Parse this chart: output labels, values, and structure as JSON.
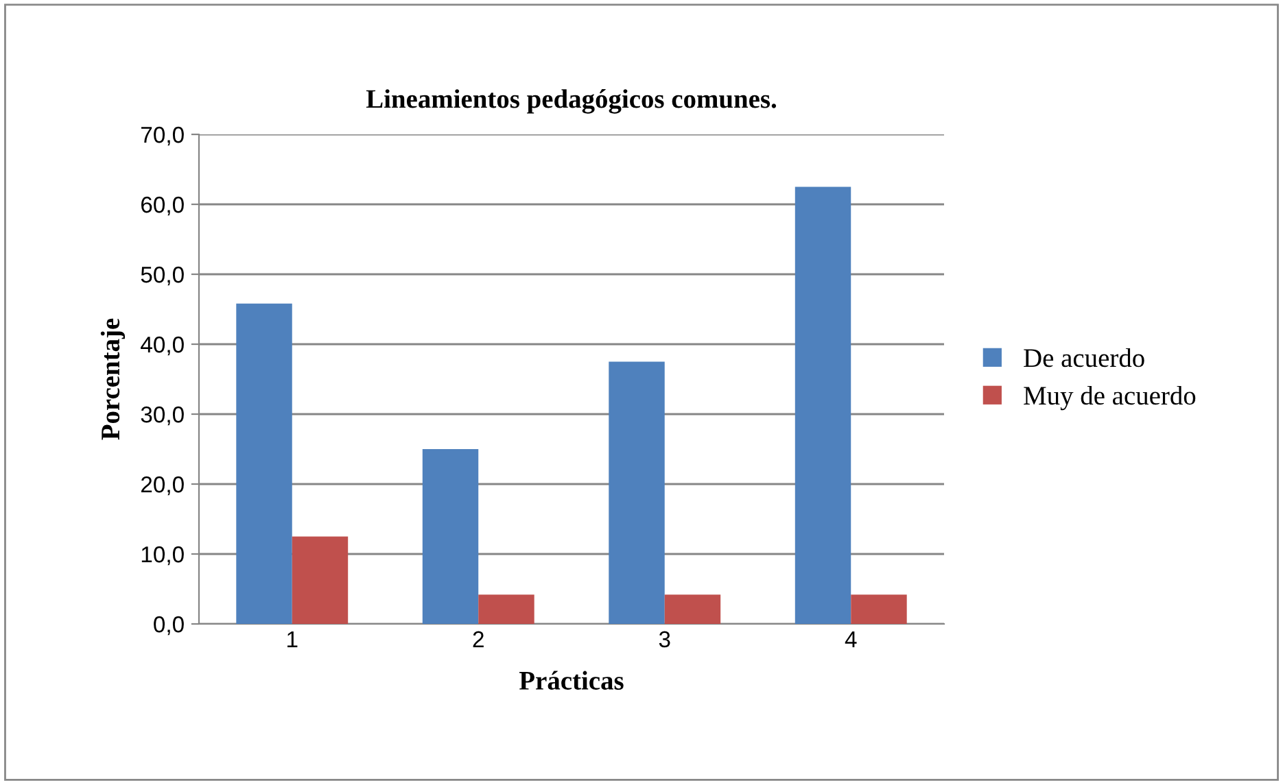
{
  "chart_data": {
    "type": "bar",
    "title": "Lineamientos pedagógicos comunes.",
    "xlabel": "Prácticas",
    "ylabel": "Porcentaje",
    "categories": [
      "1",
      "2",
      "3",
      "4"
    ],
    "series": [
      {
        "name": "De acuerdo",
        "color": "#4f81bd",
        "values": [
          45.8,
          25.0,
          37.5,
          62.5
        ]
      },
      {
        "name": "Muy de acuerdo",
        "color": "#c0504d",
        "values": [
          12.5,
          4.2,
          4.2,
          4.2
        ]
      }
    ],
    "ylim": [
      0,
      70
    ],
    "yticks": [
      {
        "value": 0,
        "label": "0,0"
      },
      {
        "value": 10,
        "label": "10,0"
      },
      {
        "value": 20,
        "label": "20,0"
      },
      {
        "value": 30,
        "label": "30,0"
      },
      {
        "value": 40,
        "label": "40,0"
      },
      {
        "value": 50,
        "label": "50,0"
      },
      {
        "value": 60,
        "label": "60,0"
      },
      {
        "value": 70,
        "label": "70,0"
      }
    ],
    "grid": "y",
    "legend": "right"
  }
}
